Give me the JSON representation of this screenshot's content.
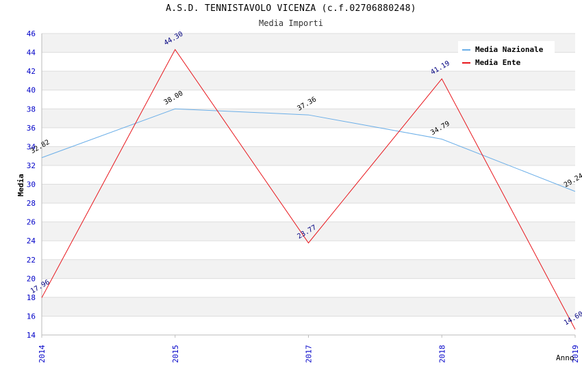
{
  "chart_data": {
    "type": "line",
    "title": "A.S.D. TENNISTAVOLO VICENZA (c.f.02706880248)",
    "subtitle": "Media Importi",
    "xlabel": "Anno",
    "ylabel": "Media",
    "categories": [
      "2014",
      "2015",
      "2017",
      "2018",
      "2019"
    ],
    "ylim": [
      14,
      46
    ],
    "ytick_step": 2,
    "grid": true,
    "legend_position": "top-right",
    "series": [
      {
        "name": "Media Nazionale",
        "color": "#6aaee8",
        "label_color": "#000000",
        "values": [
          32.82,
          38.0,
          37.36,
          34.79,
          29.24
        ],
        "labels": [
          "32.82",
          "38.00",
          "37.36",
          "34.79",
          "29.24"
        ]
      },
      {
        "name": "Media Ente",
        "color": "#e8161c",
        "label_color": "#000080",
        "values": [
          17.96,
          44.3,
          23.77,
          41.19,
          14.6
        ],
        "labels": [
          "17.96",
          "44.30",
          "23.77",
          "41.19",
          "14.60"
        ]
      }
    ],
    "colors": {
      "tick_labels": "#0000c8",
      "band_fill": "#f2f2f2",
      "grid": "#dddddd"
    }
  }
}
